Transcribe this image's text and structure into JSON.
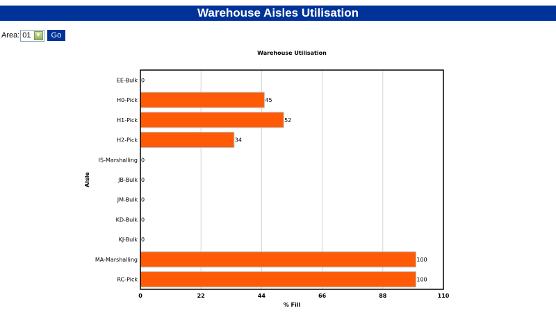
{
  "page": {
    "title": "Warehouse Aisles Utilisation"
  },
  "filter": {
    "label": "Area:",
    "selected": "01",
    "go_label": "Go"
  },
  "colors": {
    "banner": "#003399",
    "bar": "#FF5A05",
    "bar_border": "#B8B8B8"
  },
  "chart_data": {
    "type": "bar",
    "orientation": "horizontal",
    "title": "Warehouse Utilisation",
    "xlabel": "% Fill",
    "ylabel": "Aisle",
    "categories": [
      "EE-Bulk",
      "H0-Pick",
      "H1-Pick",
      "H2-Pick",
      "IS-Marshalling",
      "JB-Bulk",
      "JM-Bulk",
      "KD-Bulk",
      "KJ-Bulk",
      "MA-Marshalling",
      "RC-Pick"
    ],
    "values": [
      0,
      45,
      52,
      34,
      0,
      0,
      0,
      0,
      0,
      100,
      100
    ],
    "xlim": [
      0,
      110
    ],
    "xticks": [
      0,
      22,
      44,
      66,
      88,
      110
    ],
    "grid": "vertical",
    "data_labels": true
  }
}
